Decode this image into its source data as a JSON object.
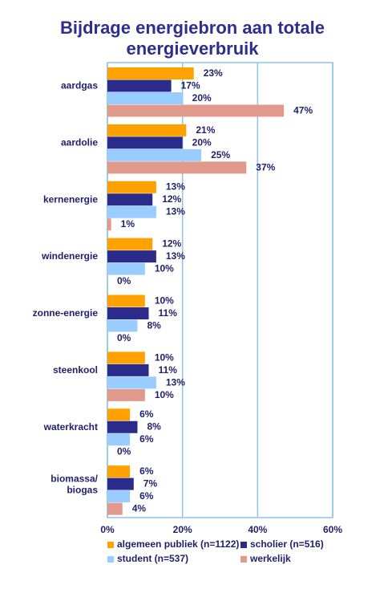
{
  "chart_data": {
    "type": "hbar",
    "title": "Bijdrage energiebron aan totale energieverbruik",
    "categories": [
      "aardgas",
      "aardolie",
      "kernenergie",
      "windenergie",
      "zonne-energie",
      "steenkool",
      "waterkracht",
      "biomassa/ biogas"
    ],
    "series": [
      {
        "name": "algemeen publiek (n=1122)",
        "color": "#ffa200",
        "values": [
          23,
          21,
          13,
          12,
          10,
          10,
          6,
          6
        ],
        "value_labels": [
          "23%",
          "21%",
          "13%",
          "12%",
          "10%",
          "10%",
          "6%",
          "6%"
        ]
      },
      {
        "name": "scholier (n=516)",
        "color": "#2b2b8c",
        "values": [
          17,
          20,
          12,
          13,
          11,
          11,
          8,
          7
        ],
        "value_labels": [
          "17%",
          "20%",
          "12%",
          "13%",
          "11%",
          "11%",
          "8%",
          "7%"
        ]
      },
      {
        "name": "student (n=537)",
        "color": "#99ccff",
        "values": [
          20,
          25,
          13,
          10,
          8,
          13,
          6,
          6
        ],
        "value_labels": [
          "20%",
          "25%",
          "13%",
          "10%",
          "8%",
          "13%",
          "6%",
          "6%"
        ]
      },
      {
        "name": "werkelijk",
        "color": "#e0998a",
        "values": [
          47,
          37,
          1,
          0,
          0,
          10,
          0,
          4
        ],
        "value_labels": [
          "47%",
          "37%",
          "1%",
          "0%",
          "0%",
          "10%",
          "0%",
          "4%"
        ]
      }
    ],
    "xlim": [
      0,
      60
    ],
    "xticks": [
      {
        "value": 0,
        "label": "0%"
      },
      {
        "value": 20,
        "label": "20%"
      },
      {
        "value": 40,
        "label": "40%"
      },
      {
        "value": 60,
        "label": "60%"
      }
    ],
    "grid": true
  }
}
